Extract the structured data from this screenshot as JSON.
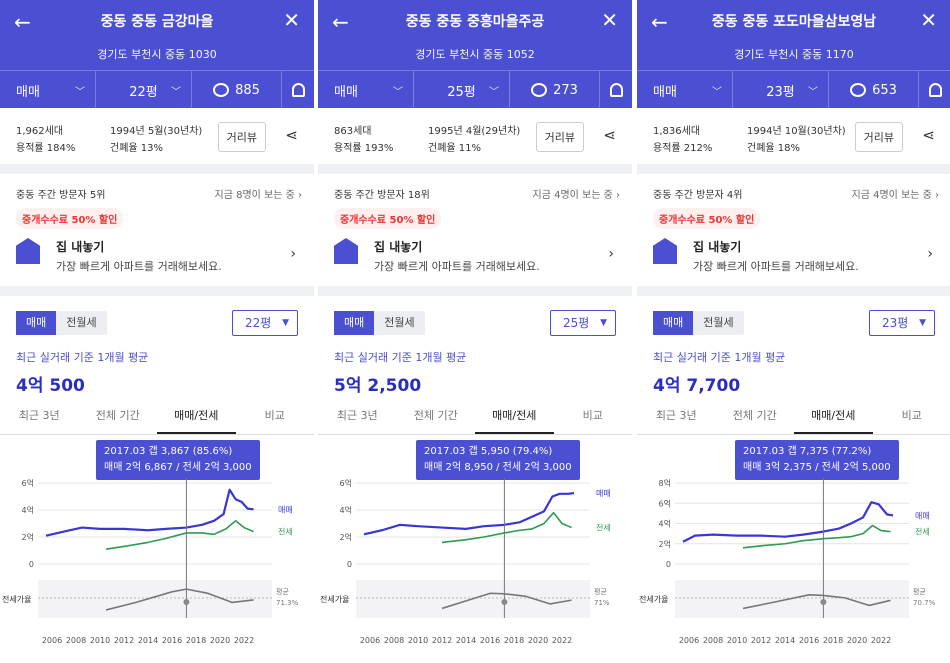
{
  "panels": [
    {
      "header": {
        "title": "중동 중동 금강마을",
        "address": "경기도 부천시 중동 1030",
        "deal": "매매",
        "pyeong": "22평",
        "comments": "885"
      },
      "info": {
        "households": "1,962세대",
        "floor_area": "용적률 184%",
        "built": "1994년 5월(30년차)",
        "coverage": "건폐율 13%",
        "road_view": "거리뷰"
      },
      "visit": {
        "rank": "중동 주간 방문자 5위",
        "now": "지금 8명이 보는 중"
      },
      "promo": "중개수수료 50% 할인",
      "sell": {
        "title": "집 내놓기",
        "subtitle": "가장 빠르게 아파트를 거래해보세요."
      },
      "seg": {
        "sale": "매매",
        "rent": "전월세"
      },
      "pyeong_select": "22평",
      "avg_label": "최근 실거래 기준 1개월 평균",
      "avg_value": "4억 500",
      "tabs": [
        "최근 3년",
        "전체 기간",
        "매매/전세",
        "비교"
      ],
      "tooltip": {
        "line1": "2017.03  갭 3,867 (85.6%)",
        "line2": "매매 2억 6,867 / 전세 2억 3,000"
      },
      "chart": {
        "yticks": [
          "6억",
          "4억",
          "2억",
          "0"
        ],
        "xticks": [
          "2006",
          "2008",
          "2010",
          "2012",
          "2014",
          "2016",
          "2018",
          "2020",
          "2022"
        ],
        "sale_label": "매매",
        "jeonse_label": "전세",
        "ratio_label": "전세가율",
        "avg_label": "평균",
        "avg_ratio": "71.3%"
      }
    },
    {
      "header": {
        "title": "중동 중동 중흥마을주공",
        "address": "경기도 부천시 중동 1052",
        "deal": "매매",
        "pyeong": "25평",
        "comments": "273"
      },
      "info": {
        "households": "863세대",
        "floor_area": "용적률 193%",
        "built": "1995년 4월(29년차)",
        "coverage": "건폐율 11%",
        "road_view": "거리뷰"
      },
      "visit": {
        "rank": "중동 주간 방문자 18위",
        "now": "지금 4명이 보는 중"
      },
      "promo": "중개수수료 50% 할인",
      "sell": {
        "title": "집 내놓기",
        "subtitle": "가장 빠르게 아파트를 거래해보세요."
      },
      "seg": {
        "sale": "매매",
        "rent": "전월세"
      },
      "pyeong_select": "25평",
      "avg_label": "최근 실거래 기준 1개월 평균",
      "avg_value": "5억 2,500",
      "tabs": [
        "최근 3년",
        "전체 기간",
        "매매/전세",
        "비교"
      ],
      "tooltip": {
        "line1": "2017.03  갭 5,950 (79.4%)",
        "line2": "매매 2억 8,950 / 전세 2억 3,000"
      },
      "chart": {
        "yticks": [
          "6억",
          "4억",
          "2억",
          "0"
        ],
        "xticks": [
          "2006",
          "2008",
          "2010",
          "2012",
          "2014",
          "2016",
          "2018",
          "2020",
          "2022"
        ],
        "sale_label": "매매",
        "jeonse_label": "전세",
        "ratio_label": "전세가율",
        "avg_label": "평균",
        "avg_ratio": "71%"
      }
    },
    {
      "header": {
        "title": "중동 중동 포도마을삼보영남",
        "address": "경기도 부천시 중동 1170",
        "deal": "매매",
        "pyeong": "23평",
        "comments": "653"
      },
      "info": {
        "households": "1,836세대",
        "floor_area": "용적률 212%",
        "built": "1994년 10월(30년차)",
        "coverage": "건폐율 18%",
        "road_view": "거리뷰"
      },
      "visit": {
        "rank": "중동 주간 방문자 4위",
        "now": "지금 4명이 보는 중"
      },
      "promo": "중개수수료 50% 할인",
      "sell": {
        "title": "집 내놓기",
        "subtitle": "가장 빠르게 아파트를 거래해보세요."
      },
      "seg": {
        "sale": "매매",
        "rent": "전월세"
      },
      "pyeong_select": "23평",
      "avg_label": "최근 실거래 기준 1개월 평균",
      "avg_value": "4억 7,700",
      "tabs": [
        "최근 3년",
        "전체 기간",
        "매매/전세",
        "비교"
      ],
      "tooltip": {
        "line1": "2017.03  갭 7,375 (77.2%)",
        "line2": "매매 3억 2,375 / 전세 2억 5,000"
      },
      "chart": {
        "yticks": [
          "8억",
          "6억",
          "4억",
          "2억",
          "0"
        ],
        "xticks": [
          "2006",
          "2008",
          "2010",
          "2012",
          "2014",
          "2016",
          "2018",
          "2020",
          "2022"
        ],
        "sale_label": "매매",
        "jeonse_label": "전세",
        "ratio_label": "전세가율",
        "avg_label": "평균",
        "avg_ratio": "70.7%"
      }
    }
  ],
  "colors": {
    "brand": "#4b4fd1",
    "sale": "#3a36d6",
    "jeonse": "#2e9a52",
    "ratio": "#777777",
    "promo": "#e33333"
  },
  "chart_data": [
    {
      "type": "line",
      "xlim": [
        2005,
        2024
      ],
      "ylim": [
        0,
        6
      ],
      "series": [
        {
          "name": "매매",
          "x": [
            2005.5,
            2007,
            2008.5,
            2010,
            2012,
            2014,
            2015.5,
            2017.2,
            2018.5,
            2019.5,
            2020.3,
            2020.8,
            2021.3,
            2021.8,
            2022.3,
            2022.8
          ],
          "values": [
            2.1,
            2.4,
            2.7,
            2.6,
            2.6,
            2.5,
            2.6,
            2.7,
            2.9,
            3.2,
            3.7,
            5.5,
            4.8,
            4.6,
            4.1,
            4.05
          ]
        },
        {
          "name": "전세",
          "x": [
            2010.5,
            2012,
            2014,
            2015.5,
            2017.2,
            2018.5,
            2019.5,
            2020.5,
            2021.3,
            2022,
            2022.8
          ],
          "values": [
            1.1,
            1.3,
            1.6,
            1.9,
            2.3,
            2.3,
            2.2,
            2.6,
            3.2,
            2.7,
            2.4
          ]
        },
        {
          "name": "전세가율",
          "x": [
            2010.5,
            2013,
            2016,
            2017.2,
            2019,
            2021,
            2022.8
          ],
          "values": [
            58,
            68,
            82,
            85.6,
            80,
            68,
            71.3
          ]
        }
      ]
    },
    {
      "type": "line",
      "xlim": [
        2005,
        2024
      ],
      "ylim": [
        0,
        6
      ],
      "series": [
        {
          "name": "매매",
          "x": [
            2005.5,
            2007,
            2008.5,
            2010,
            2012,
            2014,
            2015.5,
            2017.2,
            2018.5,
            2019.5,
            2020.5,
            2021.2,
            2021.8,
            2022.5,
            2023
          ],
          "values": [
            2.2,
            2.5,
            2.9,
            2.8,
            2.7,
            2.6,
            2.8,
            2.9,
            3.1,
            3.5,
            3.9,
            5.0,
            5.2,
            5.2,
            5.25
          ]
        },
        {
          "name": "전세",
          "x": [
            2012,
            2014,
            2015.5,
            2017.2,
            2018.5,
            2019.5,
            2020.5,
            2021.3,
            2022,
            2022.8
          ],
          "values": [
            1.6,
            1.8,
            2.0,
            2.3,
            2.5,
            2.6,
            3.0,
            3.8,
            3.0,
            2.7
          ]
        },
        {
          "name": "전세가율",
          "x": [
            2012,
            2014,
            2016,
            2017.2,
            2019,
            2021,
            2022.8
          ],
          "values": [
            60,
            70,
            80,
            79.4,
            76,
            66,
            71
          ]
        }
      ]
    },
    {
      "type": "line",
      "xlim": [
        2005,
        2024
      ],
      "ylim": [
        0,
        8
      ],
      "series": [
        {
          "name": "매매",
          "x": [
            2005.5,
            2006.5,
            2008,
            2010,
            2012,
            2014,
            2015.5,
            2017.2,
            2018.5,
            2019.5,
            2020.5,
            2021.2,
            2021.8,
            2022.5,
            2023
          ],
          "values": [
            2.2,
            2.8,
            2.9,
            2.8,
            2.8,
            2.7,
            2.9,
            3.2,
            3.5,
            4.0,
            4.6,
            6.1,
            5.9,
            4.9,
            4.8
          ]
        },
        {
          "name": "전세",
          "x": [
            2010.5,
            2012,
            2014,
            2015.5,
            2017.2,
            2018.5,
            2019.5,
            2020.5,
            2021.3,
            2022,
            2022.8
          ],
          "values": [
            1.6,
            1.8,
            2.0,
            2.3,
            2.5,
            2.6,
            2.7,
            3.0,
            3.8,
            3.3,
            3.2
          ]
        },
        {
          "name": "전세가율",
          "x": [
            2010.5,
            2013,
            2016,
            2017.2,
            2019,
            2021,
            2022.8
          ],
          "values": [
            60,
            68,
            78,
            77.2,
            74,
            64,
            70.7
          ]
        }
      ]
    }
  ]
}
